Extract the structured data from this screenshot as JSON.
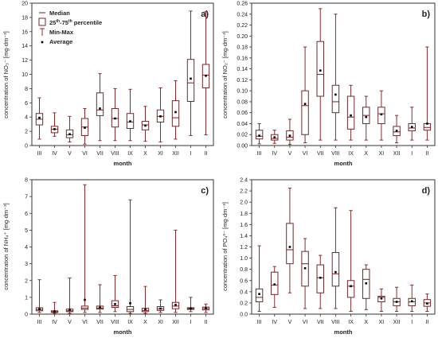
{
  "chart_data": [
    {
      "type": "box",
      "panel_label": "a)",
      "xlabel": "month",
      "ylabel": "concentration of NO₃⁻ [mg·dm⁻³]",
      "ylim": [
        0,
        20
      ],
      "yticks": [
        0,
        2,
        4,
        6,
        8,
        10,
        12,
        14,
        16,
        18,
        20
      ],
      "categories": [
        "III",
        "IV",
        "V",
        "VI",
        "VII",
        "VIII",
        "IX",
        "X",
        "XI",
        "XII",
        "I",
        "II"
      ],
      "boxes": [
        {
          "min": 0.9,
          "q1": 2.9,
          "median": 3.7,
          "q3": 4.5,
          "max": 6.7,
          "mean": 3.9
        },
        {
          "min": 1.3,
          "q1": 1.8,
          "median": 2.3,
          "q3": 2.7,
          "max": 4.6,
          "mean": 2.3
        },
        {
          "min": 0.5,
          "q1": 1.1,
          "median": 1.5,
          "q3": 2.2,
          "max": 4.1,
          "mean": 1.6
        },
        {
          "min": 0.2,
          "q1": 1.4,
          "median": 2.6,
          "q3": 3.8,
          "max": 5.2,
          "mean": 2.5
        },
        {
          "min": 0.7,
          "q1": 4.2,
          "median": 5.0,
          "q3": 7.4,
          "max": 10.1,
          "mean": 5.2
        },
        {
          "min": 0.7,
          "q1": 2.6,
          "median": 3.8,
          "q3": 5.2,
          "max": 8.0,
          "mean": 3.8
        },
        {
          "min": 0.7,
          "q1": 2.4,
          "median": 3.3,
          "q3": 4.5,
          "max": 7.9,
          "mean": 3.4
        },
        {
          "min": 0.6,
          "q1": 2.2,
          "median": 2.9,
          "q3": 3.4,
          "max": 5.5,
          "mean": 2.8
        },
        {
          "min": 0.5,
          "q1": 3.3,
          "median": 4.1,
          "q3": 5.0,
          "max": 8.1,
          "mean": 4.1
        },
        {
          "min": 0.9,
          "q1": 2.7,
          "median": 3.9,
          "q3": 6.3,
          "max": 9.1,
          "mean": 4.7
        },
        {
          "min": 1.4,
          "q1": 6.2,
          "median": 8.8,
          "q3": 12.1,
          "max": 18.9,
          "mean": 9.4
        },
        {
          "min": 1.5,
          "q1": 8.1,
          "median": 9.9,
          "q3": 11.4,
          "max": 18.8,
          "mean": 9.8
        }
      ],
      "legend": {
        "median": "Median",
        "box_prefix": "25",
        "box_sup1": "th",
        "box_mid": "-75",
        "box_sup2": "th",
        "box_suffix": " percentile",
        "whisker": "Min-Max",
        "average": "Average"
      }
    },
    {
      "type": "box",
      "panel_label": "b)",
      "xlabel": "month",
      "ylabel": "concentration of NO₂⁻ [mg·dm⁻³]",
      "ylim": [
        0,
        0.26
      ],
      "yticks": [
        0,
        0.02,
        0.04,
        0.06,
        0.08,
        0.1,
        0.12,
        0.14,
        0.16,
        0.18,
        0.2,
        0.22,
        0.24,
        0.26
      ],
      "categories": [
        "III",
        "IV",
        "V",
        "VI",
        "VII",
        "VIII",
        "IX",
        "X",
        "XI",
        "XII",
        "I",
        "II"
      ],
      "boxes": [
        {
          "min": 0.003,
          "q1": 0.012,
          "median": 0.017,
          "q3": 0.028,
          "max": 0.04,
          "mean": 0.018
        },
        {
          "min": 0.004,
          "q1": 0.01,
          "median": 0.013,
          "q3": 0.02,
          "max": 0.028,
          "mean": 0.015
        },
        {
          "min": 0.002,
          "q1": 0.01,
          "median": 0.015,
          "q3": 0.027,
          "max": 0.048,
          "mean": 0.018
        },
        {
          "min": 0.005,
          "q1": 0.02,
          "median": 0.073,
          "q3": 0.1,
          "max": 0.18,
          "mean": 0.076
        },
        {
          "min": 0.01,
          "q1": 0.09,
          "median": 0.13,
          "q3": 0.19,
          "max": 0.25,
          "mean": 0.137
        },
        {
          "min": 0.01,
          "q1": 0.06,
          "median": 0.08,
          "q3": 0.11,
          "max": 0.24,
          "mean": 0.093
        },
        {
          "min": 0.01,
          "q1": 0.03,
          "median": 0.052,
          "q3": 0.09,
          "max": 0.11,
          "mean": 0.055
        },
        {
          "min": 0.01,
          "q1": 0.04,
          "median": 0.055,
          "q3": 0.07,
          "max": 0.09,
          "mean": 0.052
        },
        {
          "min": 0.01,
          "q1": 0.04,
          "median": 0.058,
          "q3": 0.07,
          "max": 0.1,
          "mean": 0.057
        },
        {
          "min": 0.005,
          "q1": 0.018,
          "median": 0.025,
          "q3": 0.035,
          "max": 0.055,
          "mean": 0.027
        },
        {
          "min": 0.01,
          "q1": 0.027,
          "median": 0.032,
          "q3": 0.04,
          "max": 0.07,
          "mean": 0.034
        },
        {
          "min": 0.01,
          "q1": 0.028,
          "median": 0.033,
          "q3": 0.04,
          "max": 0.18,
          "mean": 0.04
        }
      ]
    },
    {
      "type": "box",
      "panel_label": "c)",
      "xlabel": "month",
      "ylabel": "concentration of NH₄⁺ [mg·dm⁻³]",
      "ylim": [
        0,
        8
      ],
      "yticks": [
        0,
        1,
        2,
        3,
        4,
        5,
        6,
        7,
        8
      ],
      "categories": [
        "III",
        "IV",
        "V",
        "VI",
        "VII",
        "VIII",
        "IX",
        "X",
        "XI",
        "XII",
        "I",
        "II"
      ],
      "boxes": [
        {
          "min": 0.1,
          "q1": 0.2,
          "median": 0.27,
          "q3": 0.38,
          "max": 2.05,
          "mean": 0.3
        },
        {
          "min": 0.05,
          "q1": 0.1,
          "median": 0.14,
          "q3": 0.2,
          "max": 0.7,
          "mean": 0.16
        },
        {
          "min": 0.05,
          "q1": 0.15,
          "median": 0.2,
          "q3": 0.3,
          "max": 2.15,
          "mean": 0.26
        },
        {
          "min": 0.1,
          "q1": 0.28,
          "median": 0.36,
          "q3": 0.48,
          "max": 7.7,
          "mean": 0.85
        },
        {
          "min": 0.1,
          "q1": 0.3,
          "median": 0.36,
          "q3": 0.48,
          "max": 1.75,
          "mean": 0.4
        },
        {
          "min": 0.15,
          "q1": 0.4,
          "median": 0.5,
          "q3": 0.8,
          "max": 2.3,
          "mean": 0.6
        },
        {
          "min": 0.05,
          "q1": 0.15,
          "median": 0.28,
          "q3": 0.45,
          "max": 6.8,
          "mean": 0.65
        },
        {
          "min": 0.05,
          "q1": 0.15,
          "median": 0.22,
          "q3": 0.35,
          "max": 1.65,
          "mean": 0.28
        },
        {
          "min": 0.1,
          "q1": 0.22,
          "median": 0.32,
          "q3": 0.45,
          "max": 0.85,
          "mean": 0.33
        },
        {
          "min": 0.1,
          "q1": 0.32,
          "median": 0.48,
          "q3": 0.7,
          "max": 5.0,
          "mean": 0.55
        },
        {
          "min": 0.15,
          "q1": 0.28,
          "median": 0.33,
          "q3": 0.38,
          "max": 1.0,
          "mean": 0.34
        },
        {
          "min": 0.1,
          "q1": 0.25,
          "median": 0.33,
          "q3": 0.42,
          "max": 0.6,
          "mean": 0.35
        }
      ]
    },
    {
      "type": "box",
      "panel_label": "d)",
      "xlabel": "month",
      "ylabel": "concentration of PO₄³⁻ [mg·dm⁻³]",
      "ylim": [
        0,
        2.4
      ],
      "yticks": [
        0,
        0.2,
        0.4,
        0.6,
        0.8,
        1.0,
        1.2,
        1.4,
        1.6,
        1.8,
        2.0,
        2.2,
        2.4
      ],
      "categories": [
        "III",
        "IV",
        "V",
        "VI",
        "VII",
        "VIII",
        "IX",
        "X",
        "XI",
        "XII",
        "I",
        "II"
      ],
      "boxes": [
        {
          "min": 0.05,
          "q1": 0.22,
          "median": 0.3,
          "q3": 0.45,
          "max": 1.22,
          "mean": 0.36
        },
        {
          "min": 0.12,
          "q1": 0.35,
          "median": 0.52,
          "q3": 0.75,
          "max": 0.85,
          "mean": 0.53
        },
        {
          "min": 0.38,
          "q1": 0.9,
          "median": 1.15,
          "q3": 1.62,
          "max": 2.25,
          "mean": 1.2
        },
        {
          "min": 0.1,
          "q1": 0.5,
          "median": 0.9,
          "q3": 1.12,
          "max": 1.35,
          "mean": 0.82
        },
        {
          "min": 0.1,
          "q1": 0.38,
          "median": 0.65,
          "q3": 0.88,
          "max": 1.05,
          "mean": 0.65
        },
        {
          "min": 0.1,
          "q1": 0.5,
          "median": 0.72,
          "q3": 1.1,
          "max": 1.9,
          "mean": 0.75
        },
        {
          "min": 0.05,
          "q1": 0.3,
          "median": 0.5,
          "q3": 0.6,
          "max": 1.85,
          "mean": 0.5
        },
        {
          "min": 0.08,
          "q1": 0.28,
          "median": 0.62,
          "q3": 0.8,
          "max": 0.88,
          "mean": 0.55
        },
        {
          "min": 0.05,
          "q1": 0.22,
          "median": 0.3,
          "q3": 0.32,
          "max": 0.45,
          "mean": 0.28
        },
        {
          "min": 0.05,
          "q1": 0.15,
          "median": 0.22,
          "q3": 0.28,
          "max": 0.48,
          "mean": 0.22
        },
        {
          "min": 0.05,
          "q1": 0.15,
          "median": 0.22,
          "q3": 0.28,
          "max": 0.52,
          "mean": 0.23
        },
        {
          "min": 0.05,
          "q1": 0.14,
          "median": 0.2,
          "q3": 0.26,
          "max": 0.36,
          "mean": 0.19
        }
      ]
    }
  ]
}
